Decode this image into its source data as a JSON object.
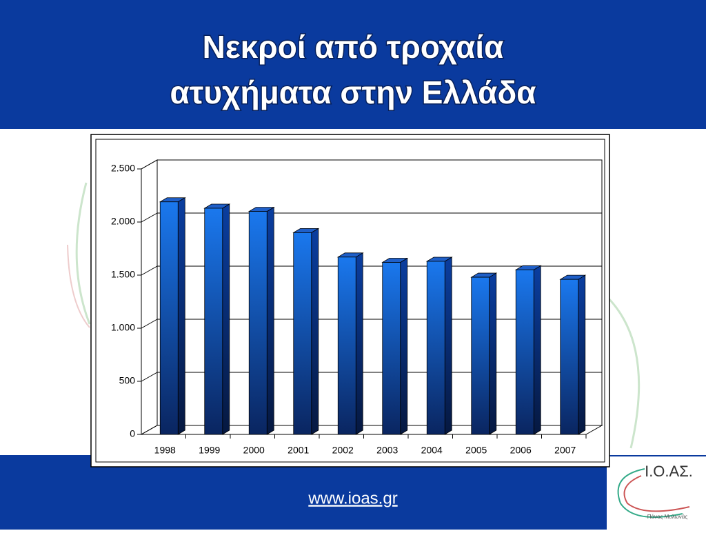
{
  "page": {
    "title_lines": [
      "Νεκροί από τροχαία",
      "ατυχήματα στην Ελλάδα"
    ],
    "footer_link": "www.ioas.gr",
    "logo_text": "Ι.Ο.ΑΣ.",
    "logo_caption": "Πάνος Μυλωνάς"
  },
  "chart_data": {
    "type": "bar3d",
    "color": "#1466d8",
    "categories": [
      "1998",
      "1999",
      "2000",
      "2001",
      "2002",
      "2003",
      "2004",
      "2005",
      "2006",
      "2007"
    ],
    "values": [
      2190,
      2130,
      2100,
      1900,
      1670,
      1620,
      1630,
      1480,
      1550,
      1460
    ],
    "ylim": [
      0,
      2500
    ],
    "yticks": [
      0,
      500,
      {
        "value": 1000,
        "label": "1.000"
      },
      {
        "value": 1500,
        "label": "1.500"
      },
      {
        "value": 2000,
        "label": "2.000"
      },
      {
        "value": 2500,
        "label": "2.500"
      }
    ],
    "grid": true
  }
}
